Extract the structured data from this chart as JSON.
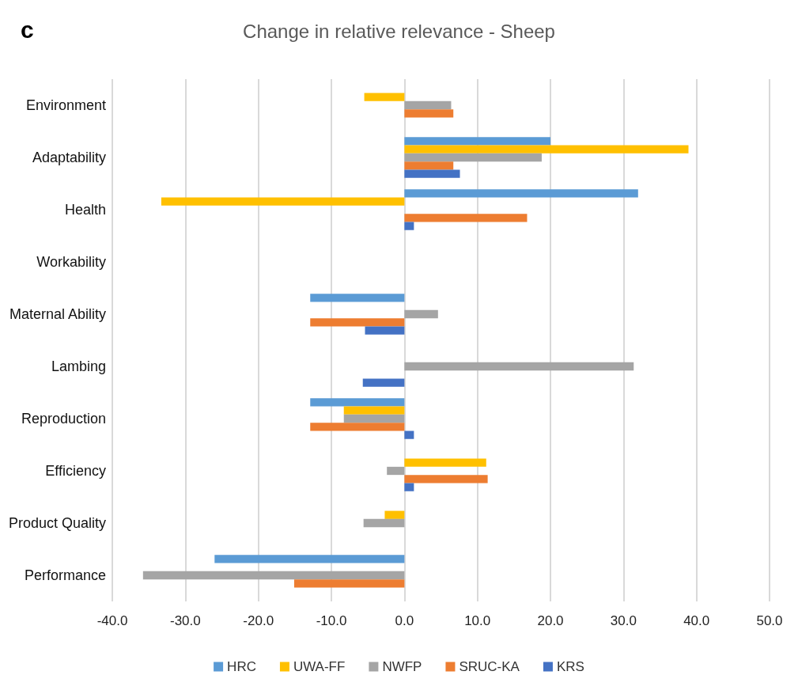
{
  "chart_data": {
    "type": "bar",
    "orientation": "horizontal",
    "title": "Change in relative relevance - Sheep",
    "annotations": [
      "c"
    ],
    "categories": [
      "Environment",
      "Adaptability",
      "Health",
      "Workability",
      "Maternal Ability",
      "Lambing",
      "Reproduction",
      "Efficiency",
      "Product Quality",
      "Performance"
    ],
    "series": [
      {
        "name": "HRC",
        "color": "#5b9bd5",
        "values": [
          null,
          20.0,
          32.0,
          null,
          -12.9,
          null,
          -12.9,
          null,
          null,
          -26.0
        ]
      },
      {
        "name": "UWA-FF",
        "color": "#ffc000",
        "values": [
          -5.5,
          38.9,
          -33.3,
          null,
          null,
          null,
          -8.3,
          11.2,
          -2.7,
          null
        ]
      },
      {
        "name": "NWFP",
        "color": "#a5a5a5",
        "values": [
          6.4,
          18.8,
          null,
          null,
          4.6,
          31.4,
          -8.3,
          -2.4,
          -5.6,
          -35.8
        ]
      },
      {
        "name": "SRUC-KA",
        "color": "#ed7d31",
        "values": [
          6.7,
          6.7,
          16.8,
          null,
          -12.9,
          null,
          -12.9,
          11.4,
          null,
          -15.1
        ]
      },
      {
        "name": "KRS",
        "color": "#4472c4",
        "values": [
          null,
          7.6,
          1.3,
          null,
          -5.4,
          -5.7,
          1.3,
          1.3,
          null,
          null
        ]
      }
    ],
    "xlim": [
      -40,
      50
    ],
    "xticks": [
      {
        "value": -40,
        "label": "-40.0"
      },
      {
        "value": -30,
        "label": "-30.0"
      },
      {
        "value": -20,
        "label": "-20.0"
      },
      {
        "value": -10,
        "label": "-10.0"
      },
      {
        "value": 0,
        "label": "0.0"
      },
      {
        "value": 10,
        "label": "10.0"
      },
      {
        "value": 20,
        "label": "20.0"
      },
      {
        "value": 30,
        "label": "30.0"
      },
      {
        "value": 40,
        "label": "40.0"
      },
      {
        "value": 50,
        "label": "50.0"
      }
    ],
    "grid": "x",
    "legend": "bottom"
  }
}
